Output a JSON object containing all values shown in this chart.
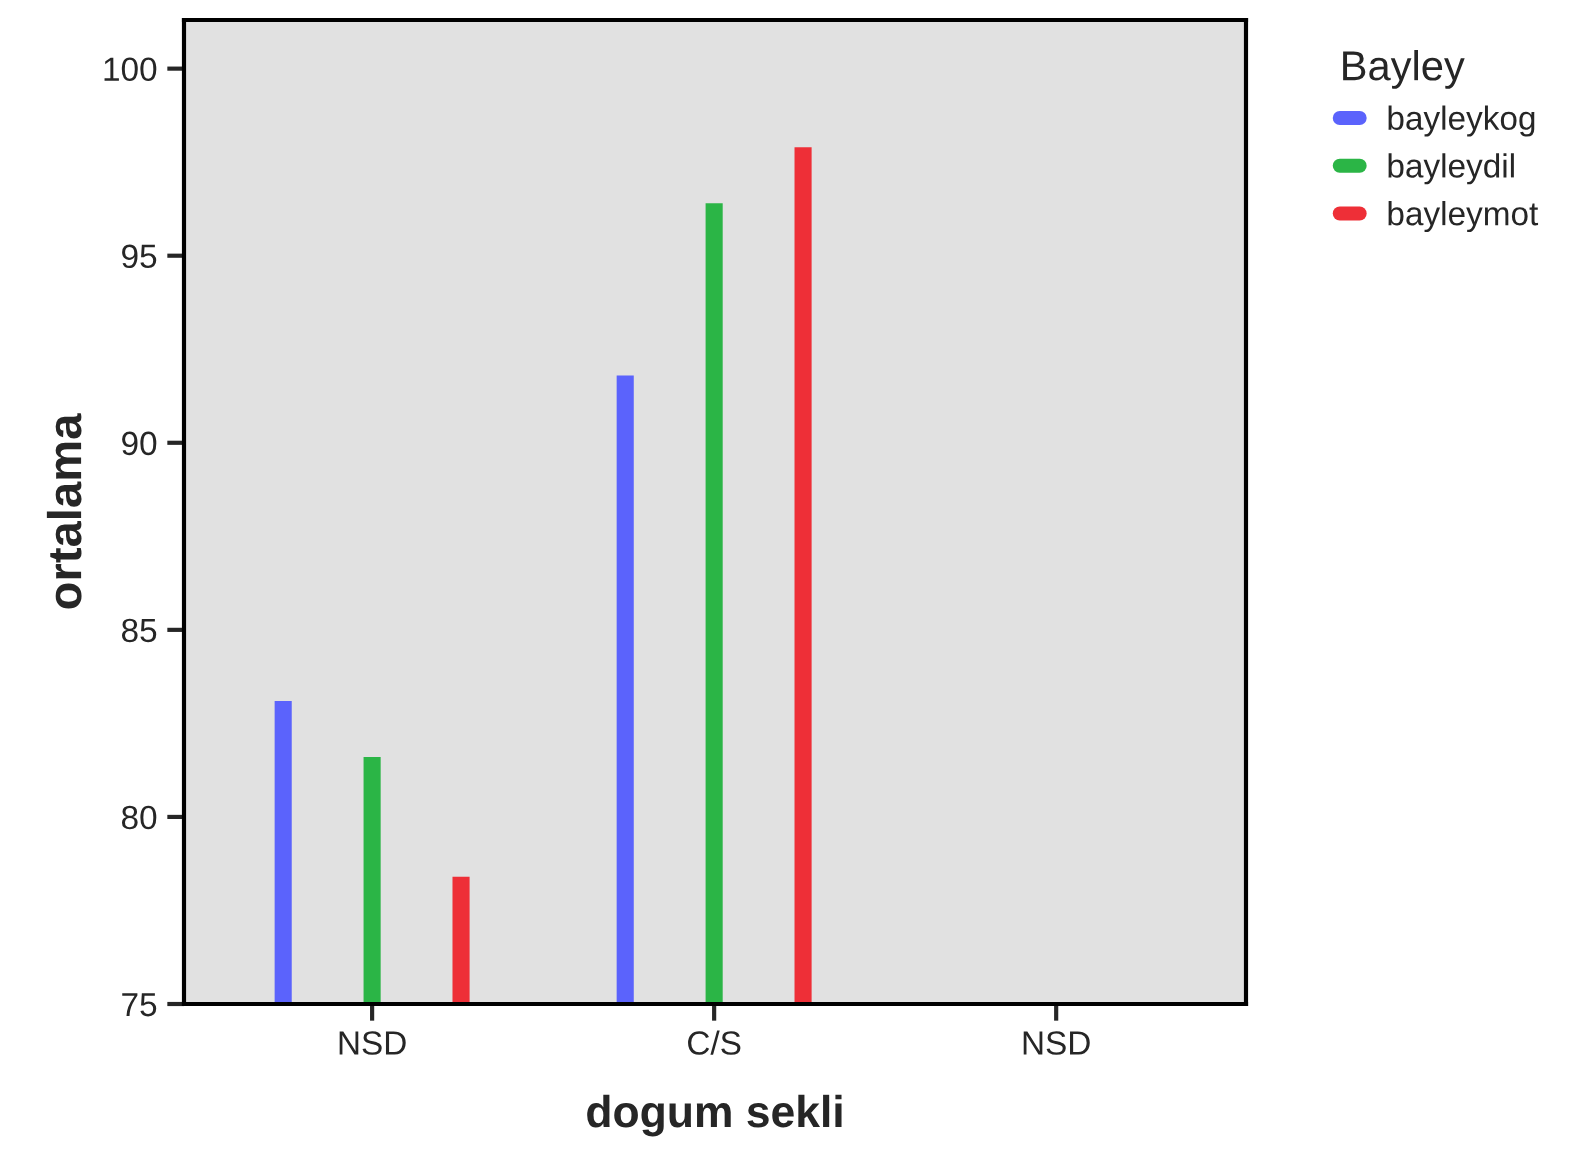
{
  "chart_data": {
    "type": "bar",
    "xlabel": "dogum sekli",
    "ylabel": "ortalama",
    "legend_title": "Bayley",
    "categories": [
      "NSD",
      "C/S",
      "NSD"
    ],
    "series": [
      {
        "name": "bayleykog",
        "color": "#5b63fc",
        "values": [
          83.1,
          91.8,
          null
        ]
      },
      {
        "name": "bayleydil",
        "color": "#2bb546",
        "values": [
          81.6,
          96.4,
          null
        ]
      },
      {
        "name": "bayleymot",
        "color": "#ee2f37",
        "values": [
          78.4,
          97.9,
          null
        ]
      }
    ],
    "ylim": [
      75,
      101.3
    ],
    "yticks": [
      75,
      80,
      85,
      90,
      95,
      100
    ],
    "grid": false,
    "legend": "top right"
  }
}
